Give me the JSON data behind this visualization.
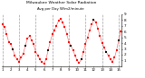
{
  "title": "Milwaukee Weather Solar Radiation",
  "subtitle": "Avg per Day W/m2/minute",
  "background_color": "#ffffff",
  "plot_bg_color": "#ffffff",
  "line_color_red": "#ff0000",
  "line_color_black": "#000000",
  "grid_color": "#888888",
  "y_min": 0,
  "y_max": 9,
  "y_ticks": [
    1,
    2,
    3,
    4,
    5,
    6,
    7,
    8,
    9
  ],
  "y_tick_labels": [
    "1",
    "2",
    "3",
    "4",
    "5",
    "6",
    "7",
    "8",
    "9"
  ],
  "num_points": 58,
  "values": [
    7.2,
    6.8,
    5.5,
    4.2,
    3.8,
    2.9,
    1.8,
    1.2,
    0.8,
    1.5,
    2.2,
    3.5,
    4.8,
    5.2,
    4.5,
    3.8,
    2.5,
    1.9,
    1.2,
    0.7,
    0.5,
    1.2,
    2.8,
    4.2,
    5.5,
    6.2,
    7.0,
    7.8,
    8.2,
    7.5,
    6.8,
    5.5,
    4.2,
    3.5,
    2.8,
    1.8,
    1.0,
    0.6,
    1.2,
    2.5,
    3.8,
    5.0,
    6.2,
    7.2,
    8.0,
    7.5,
    6.5,
    5.2,
    4.0,
    3.2,
    2.5,
    1.8,
    1.2,
    0.8,
    1.5,
    2.8,
    4.5,
    6.0
  ],
  "black_indices": [
    5,
    11,
    22,
    33,
    38,
    44,
    50,
    56
  ],
  "grid_x_positions": [
    0,
    8,
    16,
    24,
    32,
    40,
    48,
    56
  ],
  "x_tick_positions": [
    0,
    4,
    8,
    12,
    16,
    20,
    24,
    28,
    32,
    36,
    40,
    44,
    48,
    52,
    56
  ],
  "x_tick_labels": [
    "1",
    "2",
    "3",
    "4",
    "5",
    "6",
    "7",
    "8",
    "9",
    "10",
    "11",
    "12",
    "13",
    "14",
    "15"
  ]
}
